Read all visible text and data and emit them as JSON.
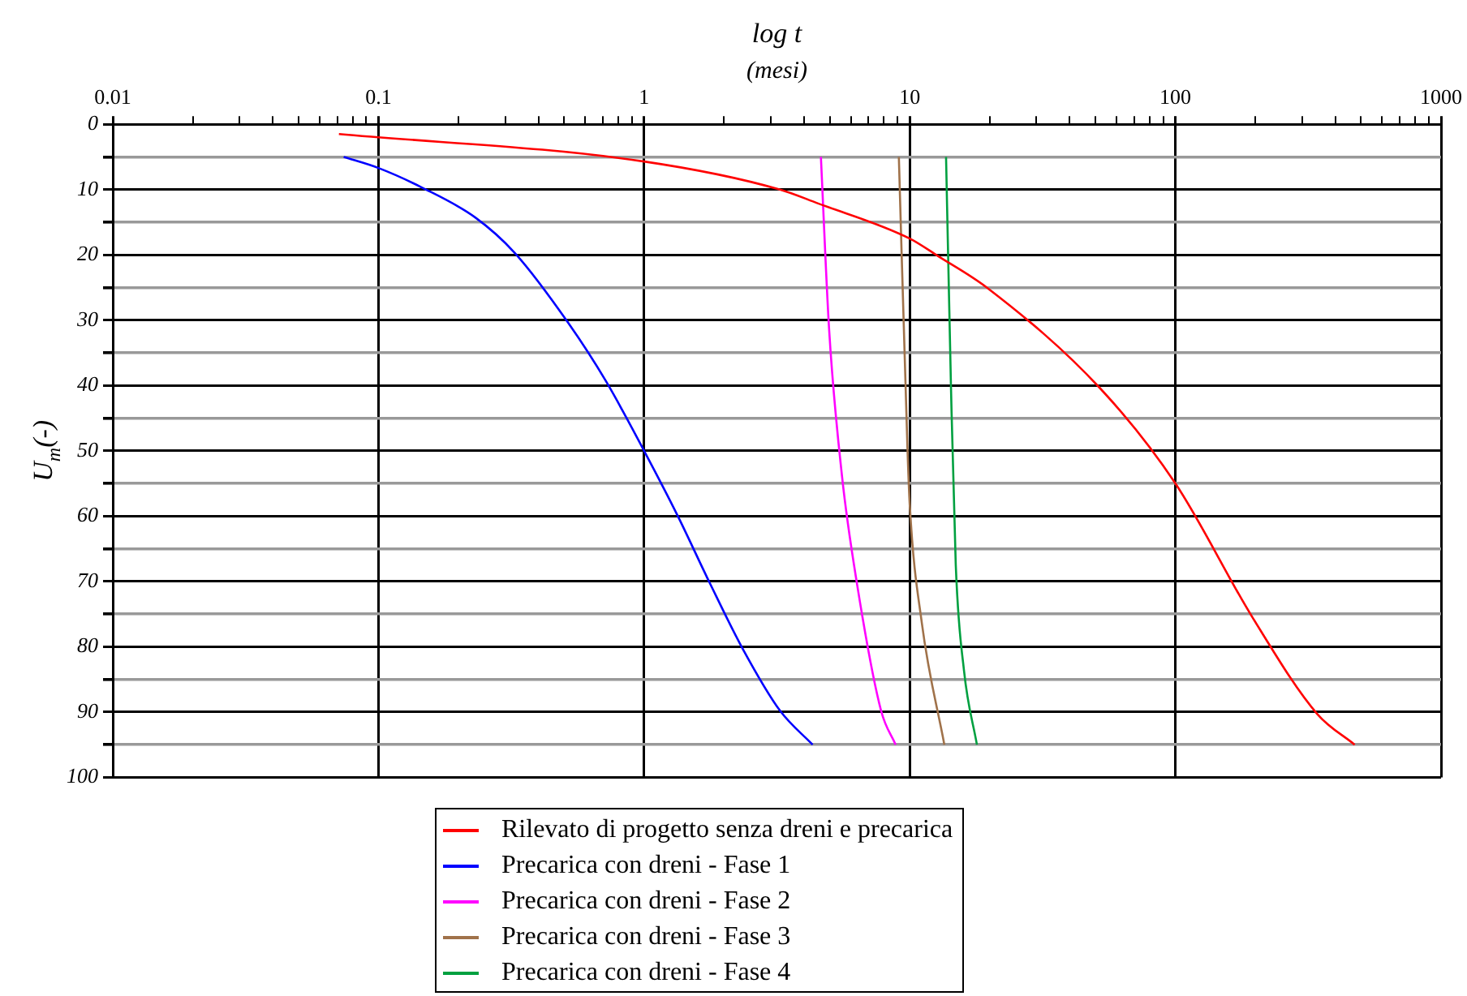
{
  "chart_data": {
    "type": "line",
    "title": "log t",
    "subtitle": "(mesi)",
    "ylabel": "U$_{m}$(-)",
    "log": "x",
    "grid": true,
    "legend": "bottom",
    "marker": "none",
    "line_style": "solid",
    "xlim": [
      0.01,
      1000
    ],
    "xticks": [
      0.01,
      {
        "value": 0.02,
        "label": null
      },
      {
        "value": 0.03,
        "label": null
      },
      {
        "value": 0.04,
        "label": null
      },
      {
        "value": 0.05,
        "label": null
      },
      {
        "value": 0.06,
        "label": null
      },
      {
        "value": 0.07,
        "label": null
      },
      {
        "value": 0.08,
        "label": null
      },
      {
        "value": 0.09,
        "label": null
      },
      0.1,
      {
        "value": 0.2,
        "label": null
      },
      {
        "value": 0.3,
        "label": null
      },
      {
        "value": 0.4,
        "label": null
      },
      {
        "value": 0.5,
        "label": null
      },
      {
        "value": 0.6,
        "label": null
      },
      {
        "value": 0.7,
        "label": null
      },
      {
        "value": 0.8,
        "label": null
      },
      {
        "value": 0.9,
        "label": null
      },
      1,
      {
        "value": 2,
        "label": null
      },
      {
        "value": 3,
        "label": null
      },
      {
        "value": 4,
        "label": null
      },
      {
        "value": 5,
        "label": null
      },
      {
        "value": 6,
        "label": null
      },
      {
        "value": 7,
        "label": null
      },
      {
        "value": 8,
        "label": null
      },
      {
        "value": 9,
        "label": null
      },
      10,
      {
        "value": 20,
        "label": null
      },
      {
        "value": 30,
        "label": null
      },
      {
        "value": 40,
        "label": null
      },
      {
        "value": 50,
        "label": null
      },
      {
        "value": 60,
        "label": null
      },
      {
        "value": 70,
        "label": null
      },
      {
        "value": 80,
        "label": null
      },
      {
        "value": 90,
        "label": null
      },
      100,
      {
        "value": 200,
        "label": null
      },
      {
        "value": 300,
        "label": null
      },
      {
        "value": 400,
        "label": null
      },
      {
        "value": 500,
        "label": null
      },
      {
        "value": 600,
        "label": null
      },
      {
        "value": 700,
        "label": null
      },
      {
        "value": 800,
        "label": null
      },
      {
        "value": 900,
        "label": null
      },
      1000
    ],
    "ylim": [
      100,
      0
    ],
    "yticks": [
      0,
      {
        "value": 5,
        "label": null
      },
      10,
      {
        "value": 15,
        "label": null
      },
      20,
      {
        "value": 25,
        "label": null
      },
      30,
      {
        "value": 35,
        "label": null
      },
      40,
      {
        "value": 45,
        "label": null
      },
      50,
      {
        "value": 55,
        "label": null
      },
      60,
      {
        "value": 65,
        "label": null
      },
      70,
      {
        "value": 75,
        "label": null
      },
      80,
      {
        "value": 85,
        "label": null
      },
      90,
      {
        "value": 95,
        "label": null
      },
      100
    ],
    "series": [
      {
        "name": "Rilevato di progetto senza dreni e precarica",
        "color": "#ff0000",
        "x": [
          0.071,
          1,
          3.25,
          4.5,
          10,
          12.8,
          19.5,
          52,
          100,
          195,
          342,
          473
        ],
        "values": [
          1.5,
          5.7,
          10,
          12.1,
          17.5,
          20.2,
          25,
          40.4,
          55,
          75.5,
          90.3,
          95
        ]
      },
      {
        "name": "Precarica con dreni - Fase 1",
        "color": "#0000ff",
        "x": [
          0.074,
          0.1,
          0.146,
          0.232,
          0.326,
          0.52,
          0.72,
          1,
          1.34,
          1.77,
          2.35,
          3.25,
          4.31
        ],
        "values": [
          5,
          6.7,
          9.7,
          14.3,
          19.7,
          30.5,
          39.4,
          50,
          60,
          70.3,
          80.3,
          89.8,
          95
        ]
      },
      {
        "name": "Precarica con dreni - Fase 2",
        "color": "#ff00ff",
        "x": [
          4.63,
          4.97,
          5.56,
          6.31,
          7.8,
          8.85
        ],
        "values": [
          5,
          31.3,
          53.9,
          70,
          89.8,
          95
        ]
      },
      {
        "name": "Precarica con dreni - Fase 3",
        "color": "#a0724a",
        "x": [
          9.1,
          9.8,
          10,
          11.1,
          13.5
        ],
        "values": [
          5,
          49.3,
          58.2,
          76.3,
          95
        ]
      },
      {
        "name": "Precarica con dreni - Fase 4",
        "color": "#00a040",
        "x": [
          13.7,
          14.3,
          14.9,
          16,
          17.9
        ],
        "values": [
          5,
          40.4,
          67.4,
          83.6,
          95
        ]
      }
    ]
  }
}
